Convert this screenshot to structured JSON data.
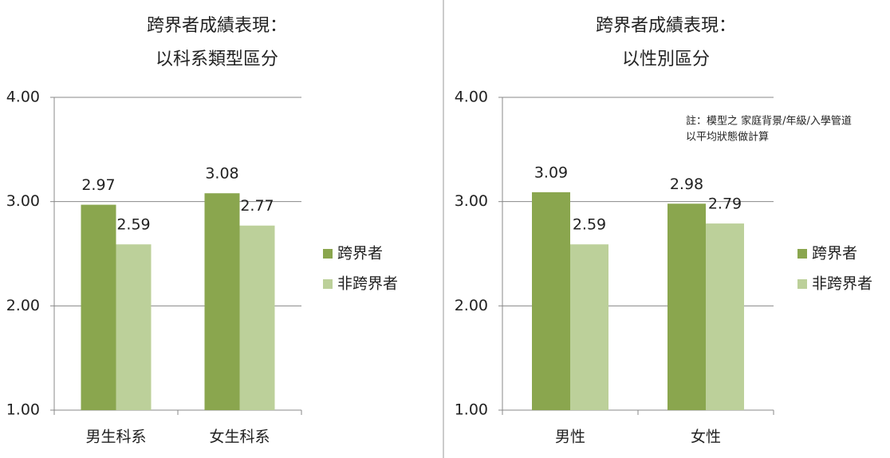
{
  "chart_data": [
    {
      "type": "bar",
      "title": [
        "跨界者成績表現：",
        "以科系類型區分"
      ],
      "categories": [
        "男生科系",
        "女生科系"
      ],
      "series": [
        {
          "name": "跨界者",
          "color": "#8aa64e",
          "values": [
            2.97,
            3.08
          ]
        },
        {
          "name": "非跨界者",
          "color": "#bcd09a",
          "values": [
            2.59,
            2.77
          ]
        }
      ],
      "ylim": [
        1,
        4
      ],
      "yticks": [
        {
          "value": 1,
          "label": "1.00"
        },
        {
          "value": 2,
          "label": "2.00"
        },
        {
          "value": 3,
          "label": "3.00"
        },
        {
          "value": 4,
          "label": "4.00"
        }
      ],
      "grid": true,
      "legend": "right"
    },
    {
      "type": "bar",
      "title": [
        "跨界者成績表現：",
        "以性別區分"
      ],
      "annotation": [
        "註：模型之 家庭背景/年級/入學管道",
        "以平均狀態做計算"
      ],
      "categories": [
        "男性",
        "女性"
      ],
      "series": [
        {
          "name": "跨界者",
          "color": "#8aa64e",
          "values": [
            3.09,
            2.98
          ]
        },
        {
          "name": "非跨界者",
          "color": "#bcd09a",
          "values": [
            2.59,
            2.79
          ]
        }
      ],
      "ylim": [
        1,
        4
      ],
      "yticks": [
        {
          "value": 1,
          "label": "1.00"
        },
        {
          "value": 2,
          "label": "2.00"
        },
        {
          "value": 3,
          "label": "3.00"
        },
        {
          "value": 4,
          "label": "4.00"
        }
      ],
      "grid": true,
      "legend": "right"
    }
  ]
}
